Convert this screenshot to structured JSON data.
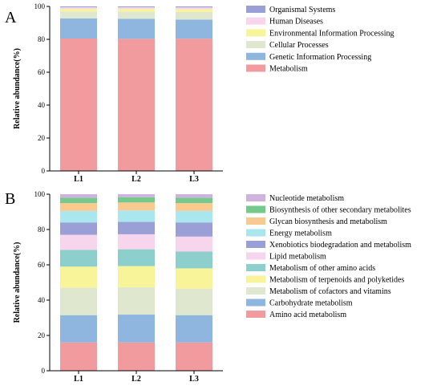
{
  "chart_data": [
    {
      "panel": "A",
      "type": "bar",
      "stacked": true,
      "categories": [
        "L1",
        "L2",
        "L3"
      ],
      "ylabel": "Relative abundance(%)",
      "ylim": [
        0,
        100
      ],
      "yticks": [
        "0",
        "20",
        "40",
        "60",
        "80",
        "100"
      ],
      "legend_position": "right",
      "legend_order": [
        "Organismal Systems",
        "Human Diseases",
        "Environmental Information Processing",
        "Cellular Processes",
        "Genetic Information Processing",
        "Metabolism"
      ],
      "series": [
        {
          "name": "Metabolism",
          "color": "#f29b9e",
          "values": [
            80.5,
            80.3,
            80.4
          ]
        },
        {
          "name": "Genetic Information Processing",
          "color": "#8fb6de",
          "values": [
            12.2,
            12.2,
            11.6
          ]
        },
        {
          "name": "Cellular Processes",
          "color": "#dfe7cf",
          "values": [
            4.2,
            4.3,
            4.6
          ]
        },
        {
          "name": "Environmental Information Processing",
          "color": "#f7f49a",
          "values": [
            1.6,
            1.7,
            1.7
          ]
        },
        {
          "name": "Human Diseases",
          "color": "#f7d5ec",
          "values": [
            1.0,
            1.0,
            1.1
          ]
        },
        {
          "name": "Organismal Systems",
          "color": "#9a9fd6",
          "values": [
            0.5,
            0.5,
            0.6
          ]
        }
      ]
    },
    {
      "panel": "B",
      "type": "bar",
      "stacked": true,
      "categories": [
        "L1",
        "L2",
        "L3"
      ],
      "ylabel": "Relative abundance(%)",
      "ylim": [
        0,
        100
      ],
      "yticks": [
        "0",
        "20",
        "40",
        "60",
        "80",
        "100"
      ],
      "legend_position": "right",
      "legend_order": [
        "Nucleotide metabolism",
        "Biosynthesis of other secondary metabolites",
        "Glycan biosynthesis and metabolism",
        "Energy metabolism",
        "Xenobiotics biodegradation and metabolism",
        "Lipid metabolism",
        "Metabolism of other amino acids",
        "Metabolism of terpenoids and polyketides",
        "Metabolism of cofactors and vitamins",
        "Carbohydrate metabolism",
        "Amino acid metabolism"
      ],
      "series": [
        {
          "name": "Amino acid metabolism",
          "color": "#f29b9e",
          "values": [
            16.0,
            16.0,
            16.0
          ]
        },
        {
          "name": "Carbohydrate metabolism",
          "color": "#8fb6de",
          "values": [
            15.5,
            15.8,
            15.5
          ]
        },
        {
          "name": "Metabolism of cofactors and vitamins",
          "color": "#dfe7cf",
          "values": [
            15.5,
            15.5,
            15.0
          ]
        },
        {
          "name": "Metabolism of terpenoids and polyketides",
          "color": "#f7f49a",
          "values": [
            12.0,
            12.0,
            11.5
          ]
        },
        {
          "name": "Metabolism of other amino acids",
          "color": "#8dcfcc",
          "values": [
            9.5,
            9.5,
            9.5
          ]
        },
        {
          "name": "Lipid metabolism",
          "color": "#f7d5ec",
          "values": [
            8.5,
            8.5,
            8.5
          ]
        },
        {
          "name": "Xenobiotics biodegradation and metabolism",
          "color": "#9a9fd6",
          "values": [
            7.0,
            7.0,
            8.0
          ]
        },
        {
          "name": "Energy metabolism",
          "color": "#a9e6ee",
          "values": [
            6.5,
            6.5,
            6.5
          ]
        },
        {
          "name": "Glycan biosynthesis and metabolism",
          "color": "#f9ca8f",
          "values": [
            4.5,
            4.5,
            4.5
          ]
        },
        {
          "name": "Biosynthesis of other secondary metabolites",
          "color": "#75c98d",
          "values": [
            3.0,
            3.0,
            3.0
          ]
        },
        {
          "name": "Nucleotide metabolism",
          "color": "#cfb2de",
          "values": [
            2.0,
            1.7,
            2.0
          ]
        }
      ]
    }
  ]
}
